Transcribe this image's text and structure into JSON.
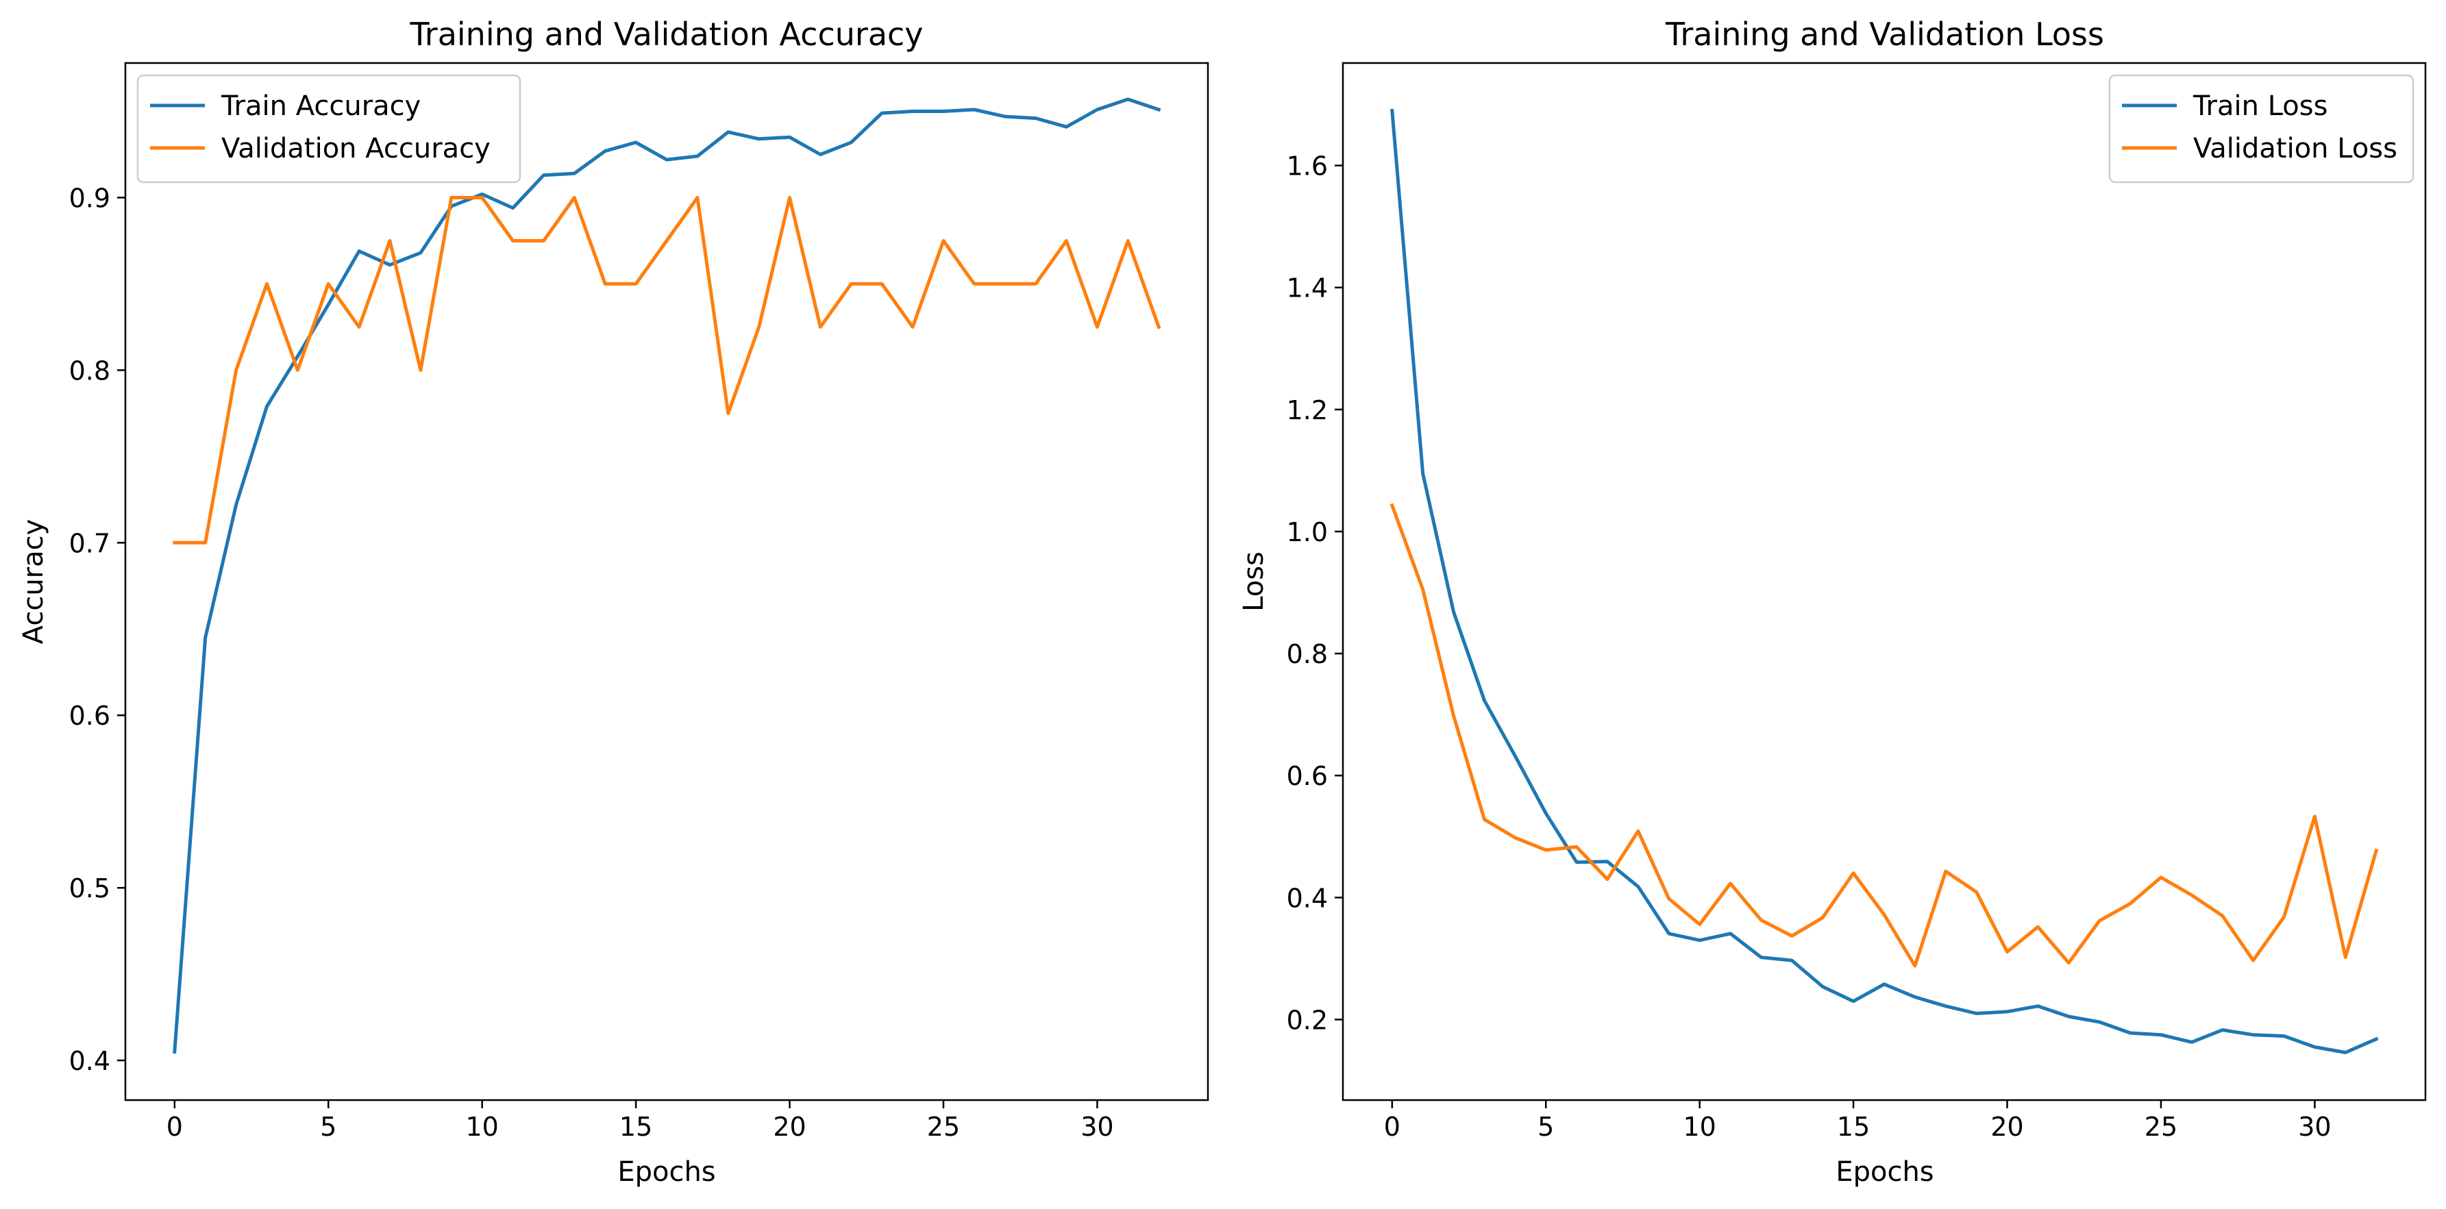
{
  "chart_data": [
    {
      "type": "line",
      "title": "Training and Validation Accuracy",
      "xlabel": "Epochs",
      "ylabel": "Accuracy",
      "xlim": [
        -1.6,
        33.6
      ],
      "ylim": [
        0.377,
        0.978
      ],
      "xticks": [
        0,
        5,
        10,
        15,
        20,
        25,
        30
      ],
      "xtick_labels": [
        "0",
        "5",
        "10",
        "15",
        "20",
        "25",
        "30"
      ],
      "yticks": [
        0.4,
        0.5,
        0.6,
        0.7,
        0.8,
        0.9
      ],
      "ytick_labels": [
        "0.4",
        "0.5",
        "0.6",
        "0.7",
        "0.8",
        "0.9"
      ],
      "grid": false,
      "legend_position": "top-left",
      "x": [
        0,
        1,
        2,
        3,
        4,
        5,
        6,
        7,
        8,
        9,
        10,
        11,
        12,
        13,
        14,
        15,
        16,
        17,
        18,
        19,
        20,
        21,
        22,
        23,
        24,
        25,
        26,
        27,
        28,
        29,
        30,
        31,
        32
      ],
      "series": [
        {
          "name": "Train Accuracy",
          "color": "#1f77b4",
          "values": [
            0.405,
            0.645,
            0.722,
            0.779,
            0.808,
            0.838,
            0.869,
            0.861,
            0.868,
            0.895,
            0.902,
            0.894,
            0.913,
            0.914,
            0.927,
            0.932,
            0.922,
            0.924,
            0.938,
            0.934,
            0.935,
            0.925,
            0.932,
            0.949,
            0.95,
            0.95,
            0.951,
            0.947,
            0.946,
            0.941,
            0.951,
            0.957,
            0.951
          ]
        },
        {
          "name": "Validation Accuracy",
          "color": "#ff7f0e",
          "values": [
            0.7,
            0.7,
            0.8,
            0.85,
            0.8,
            0.85,
            0.825,
            0.875,
            0.8,
            0.9,
            0.9,
            0.875,
            0.875,
            0.9,
            0.85,
            0.85,
            0.875,
            0.9,
            0.775,
            0.825,
            0.9,
            0.825,
            0.85,
            0.85,
            0.825,
            0.875,
            0.85,
            0.85,
            0.85,
            0.875,
            0.825,
            0.875,
            0.825
          ]
        }
      ]
    },
    {
      "type": "line",
      "title": "Training and Validation Loss",
      "xlabel": "Epochs",
      "ylabel": "Loss",
      "xlim": [
        -1.6,
        33.6
      ],
      "ylim": [
        0.068,
        1.768
      ],
      "xticks": [
        0,
        5,
        10,
        15,
        20,
        25,
        30
      ],
      "xtick_labels": [
        "0",
        "5",
        "10",
        "15",
        "20",
        "25",
        "30"
      ],
      "yticks": [
        0.2,
        0.4,
        0.6,
        0.8,
        1.0,
        1.2,
        1.4,
        1.6
      ],
      "ytick_labels": [
        "0.2",
        "0.4",
        "0.6",
        "0.8",
        "1.0",
        "1.2",
        "1.4",
        "1.6"
      ],
      "grid": false,
      "legend_position": "top-right",
      "x": [
        0,
        1,
        2,
        3,
        4,
        5,
        6,
        7,
        8,
        9,
        10,
        11,
        12,
        13,
        14,
        15,
        16,
        17,
        18,
        19,
        20,
        21,
        22,
        23,
        24,
        25,
        26,
        27,
        28,
        29,
        30,
        31,
        32
      ],
      "series": [
        {
          "name": "Train Loss",
          "color": "#1f77b4",
          "values": [
            1.69,
            1.095,
            0.868,
            0.723,
            0.632,
            0.538,
            0.458,
            0.459,
            0.418,
            0.341,
            0.33,
            0.341,
            0.302,
            0.297,
            0.254,
            0.23,
            0.258,
            0.237,
            0.222,
            0.21,
            0.213,
            0.222,
            0.205,
            0.196,
            0.178,
            0.175,
            0.163,
            0.183,
            0.175,
            0.173,
            0.155,
            0.146,
            0.168
          ]
        },
        {
          "name": "Validation Loss",
          "color": "#ff7f0e",
          "values": [
            1.043,
            0.905,
            0.698,
            0.528,
            0.498,
            0.478,
            0.483,
            0.43,
            0.509,
            0.398,
            0.356,
            0.423,
            0.363,
            0.337,
            0.367,
            0.44,
            0.372,
            0.288,
            0.443,
            0.409,
            0.311,
            0.352,
            0.293,
            0.362,
            0.39,
            0.433,
            0.404,
            0.37,
            0.297,
            0.368,
            0.533,
            0.302,
            0.477
          ]
        }
      ]
    }
  ]
}
